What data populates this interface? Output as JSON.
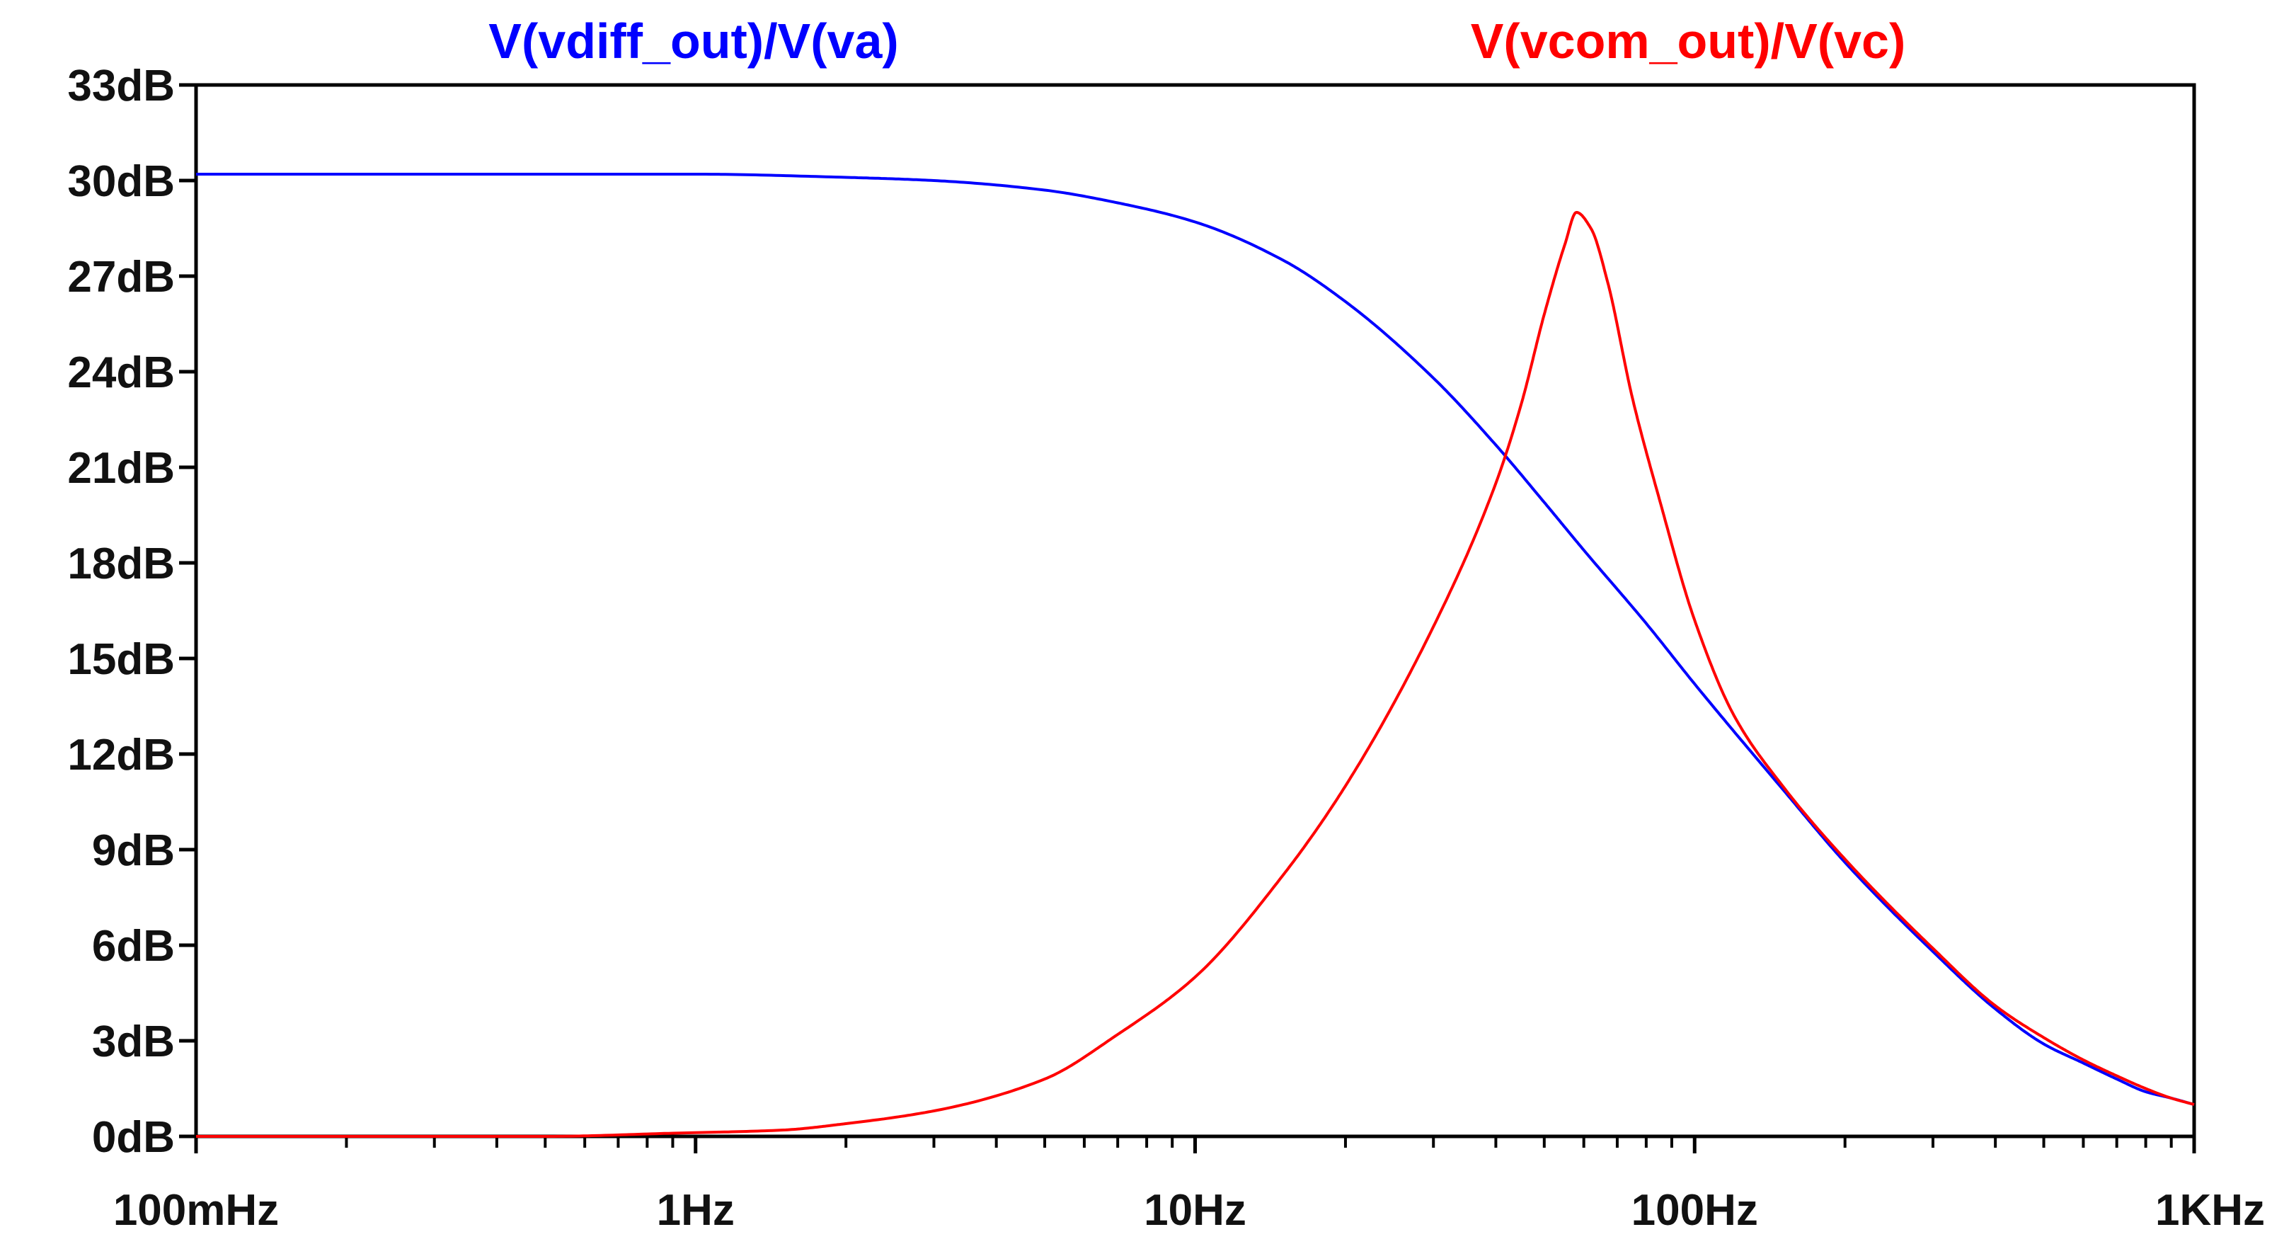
{
  "chart_data": {
    "type": "line",
    "title": "",
    "xlabel": "",
    "ylabel": "",
    "x_scale": "log",
    "xlim": [
      0.1,
      1000
    ],
    "ylim": [
      0,
      33
    ],
    "grid": false,
    "legend": "top",
    "x_ticks": [
      {
        "value": 0.1,
        "label": "100mHz"
      },
      {
        "value": 1,
        "label": "1Hz"
      },
      {
        "value": 10,
        "label": "10Hz"
      },
      {
        "value": 100,
        "label": "100Hz"
      },
      {
        "value": 1000,
        "label": "1KHz"
      }
    ],
    "y_ticks": [
      {
        "value": 0,
        "label": "0dB"
      },
      {
        "value": 3,
        "label": "3dB"
      },
      {
        "value": 6,
        "label": "6dB"
      },
      {
        "value": 9,
        "label": "9dB"
      },
      {
        "value": 12,
        "label": "12dB"
      },
      {
        "value": 15,
        "label": "15dB"
      },
      {
        "value": 18,
        "label": "18dB"
      },
      {
        "value": 21,
        "label": "21dB"
      },
      {
        "value": 24,
        "label": "24dB"
      },
      {
        "value": 27,
        "label": "27dB"
      },
      {
        "value": 30,
        "label": "30dB"
      },
      {
        "value": 33,
        "label": "33dB"
      }
    ],
    "series": [
      {
        "name": "V(vdiff_out)/V(va)",
        "color": "#0000ff",
        "x": [
          0.1,
          0.2,
          0.5,
          1,
          2,
          3,
          5,
          7,
          10,
          15,
          20,
          30,
          40,
          50,
          60,
          80,
          100,
          150,
          200,
          300,
          400,
          500,
          600,
          700,
          800,
          900,
          1000
        ],
        "y": [
          30.2,
          30.2,
          30.2,
          30.2,
          30.1,
          30.0,
          29.7,
          29.3,
          28.7,
          27.5,
          26.2,
          23.8,
          21.7,
          19.9,
          18.4,
          16.1,
          14.2,
          10.9,
          8.6,
          5.8,
          4.0,
          2.9,
          2.3,
          1.8,
          1.4,
          1.2,
          1.0
        ]
      },
      {
        "name": "V(vcom_out)/V(vc)",
        "color": "#ff0000",
        "x": [
          0.1,
          0.5,
          0.9,
          1.5,
          2,
          3,
          5,
          7,
          10,
          15,
          20,
          30,
          40,
          45,
          50,
          55,
          58,
          62,
          67,
          75,
          85,
          100,
          120,
          150,
          200,
          300,
          400,
          500,
          600,
          700,
          800,
          900,
          1000
        ],
        "y": [
          0.0,
          0.0,
          0.1,
          0.2,
          0.4,
          0.8,
          1.8,
          3.2,
          5.0,
          8.2,
          11.0,
          16.0,
          20.5,
          23.0,
          25.8,
          28.0,
          29.0,
          28.5,
          26.8,
          23.2,
          20.0,
          16.2,
          13.2,
          11.0,
          8.7,
          5.9,
          4.1,
          3.1,
          2.4,
          1.9,
          1.5,
          1.2,
          1.0
        ]
      }
    ]
  }
}
